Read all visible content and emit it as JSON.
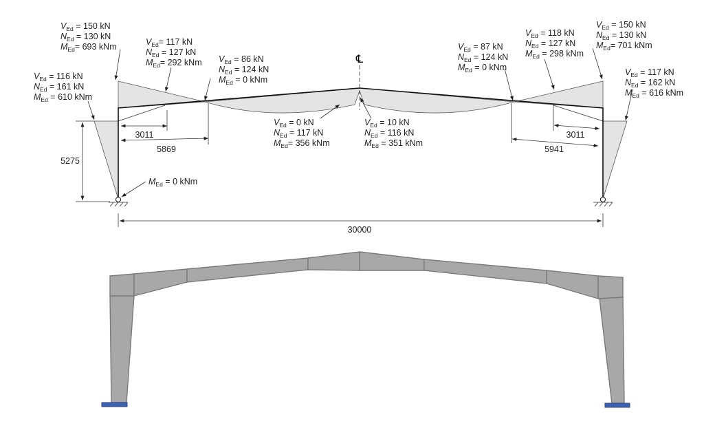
{
  "centerline_symbol": "℄",
  "annotations": [
    {
      "id": "left-eaves-rafter",
      "lines": [
        {
          "sym": "V",
          "sub": "Ed",
          "rest": " = 150 kN"
        },
        {
          "sym": "N",
          "sub": "Ed",
          "rest": " = 130 kN"
        },
        {
          "sym": "M",
          "sub": "Ed",
          "rest": "= 693 kNm"
        }
      ]
    },
    {
      "id": "left-haunch-end",
      "lines": [
        {
          "sym": "V",
          "sub": "Ed",
          "rest": "= 117 kN"
        },
        {
          "sym": "N",
          "sub": "Ed",
          "rest": " = 127 kN"
        },
        {
          "sym": "M",
          "sub": "Ed",
          "rest": "= 292 kNm"
        }
      ]
    },
    {
      "id": "left-zero-moment",
      "lines": [
        {
          "sym": "V",
          "sub": "Ed",
          "rest": " = 86 kN"
        },
        {
          "sym": "N",
          "sub": "Ed",
          "rest": " = 124 kN"
        },
        {
          "sym": "M",
          "sub": "Ed",
          "rest": " = 0 kNm"
        }
      ]
    },
    {
      "id": "left-column-top",
      "lines": [
        {
          "sym": "V",
          "sub": "Ed",
          "rest": " = 116 kN"
        },
        {
          "sym": "N",
          "sub": "Ed",
          "rest": " = 161 kN"
        },
        {
          "sym": "M",
          "sub": "Ed",
          "rest": " = 610 kNm"
        }
      ]
    },
    {
      "id": "left-base",
      "lines": [
        {
          "sym": "M",
          "sub": "Ed",
          "rest": " = 0 kNm"
        }
      ]
    },
    {
      "id": "apex-left",
      "lines": [
        {
          "sym": "V",
          "sub": "Ed",
          "rest": " = 0 kN"
        },
        {
          "sym": "N",
          "sub": "Ed",
          "rest": " = 117 kN"
        },
        {
          "sym": "M",
          "sub": "Ed",
          "rest": "= 356 kNm"
        }
      ]
    },
    {
      "id": "apex-right",
      "lines": [
        {
          "sym": "V",
          "sub": "Ed",
          "rest": " = 10 kN"
        },
        {
          "sym": "N",
          "sub": "Ed",
          "rest": " = 116 kN"
        },
        {
          "sym": "M",
          "sub": "Ed",
          "rest": " = 351 kNm"
        }
      ]
    },
    {
      "id": "right-zero-moment",
      "lines": [
        {
          "sym": "V",
          "sub": "Ed",
          "rest": " = 87 kN"
        },
        {
          "sym": "N",
          "sub": "Ed",
          "rest": " = 124 kN"
        },
        {
          "sym": "M",
          "sub": "Ed",
          "rest": " = 0 kNm"
        }
      ]
    },
    {
      "id": "right-haunch-end",
      "lines": [
        {
          "sym": "V",
          "sub": "Ed",
          "rest": " = 118 kN"
        },
        {
          "sym": "N",
          "sub": "Ed",
          "rest": " = 127 kN"
        },
        {
          "sym": "M",
          "sub": "Ed",
          "rest": " = 298 kNm"
        }
      ]
    },
    {
      "id": "right-eaves-rafter",
      "lines": [
        {
          "sym": "V",
          "sub": "Ed",
          "rest": " = 150 kN"
        },
        {
          "sym": "N",
          "sub": "Ed",
          "rest": " = 130 kN"
        },
        {
          "sym": "M",
          "sub": "Ed",
          "rest": "= 701 kNm"
        }
      ]
    },
    {
      "id": "right-column-top",
      "lines": [
        {
          "sym": "V",
          "sub": "Ed",
          "rest": "  = 117 kN"
        },
        {
          "sym": "N",
          "sub": "Ed",
          "rest": "  = 162 kN"
        },
        {
          "sym": "M",
          "sub": "Ed",
          "rest": " = 616 kNm"
        }
      ]
    }
  ],
  "dimensions": {
    "left_haunch": "3011",
    "left_zero_point": "5869",
    "column_height": "5275",
    "span": "30000",
    "right_haunch": "3011",
    "right_zero_point": "5941"
  },
  "colors": {
    "member": "#a8a8a8",
    "base_plate": "#3d62b0",
    "diagram_fill": "#e4e4e4"
  }
}
